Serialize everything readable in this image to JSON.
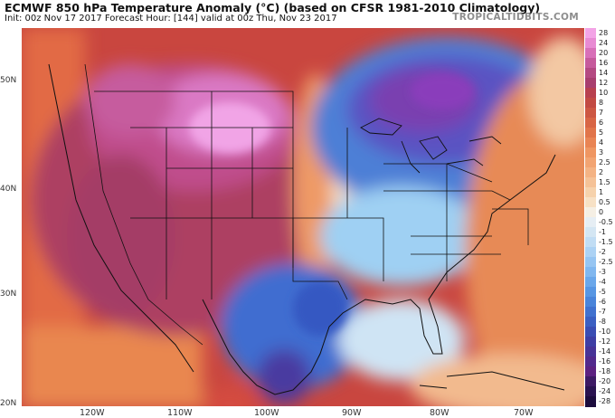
{
  "header": {
    "title": "ECMWF 850 hPa Temperature Anomaly (°C) (based on CFSR 1981-2010 Climatology)",
    "subtitle": "Init: 00z Nov 17 2017   Forecast Hour: [144]   valid at 00z Thu, Nov 23 2017",
    "brand": "TROPICALTIDBITS.COM"
  },
  "axes": {
    "lat_labels": [
      "50N",
      "40N",
      "30N",
      "20N"
    ],
    "lon_labels": [
      "120W",
      "110W",
      "100W",
      "90W",
      "80W",
      "70W"
    ]
  },
  "colorbar": {
    "labels": [
      "28",
      "24",
      "20",
      "16",
      "14",
      "12",
      "10",
      "8",
      "7",
      "6",
      "5",
      "4",
      "3",
      "2.5",
      "2",
      "1.5",
      "1",
      "0.5",
      "0",
      "-0.5",
      "-1",
      "-1.5",
      "-2",
      "-2.5",
      "-3",
      "-4",
      "-5",
      "-6",
      "-7",
      "-8",
      "-10",
      "-12",
      "-14",
      "-16",
      "-18",
      "-20",
      "-24",
      "-28"
    ],
    "colors": [
      "#f3a3e6",
      "#e88ad3",
      "#d86fb8",
      "#c65a9c",
      "#b44982",
      "#a83e6e",
      "#b8404f",
      "#c24a43",
      "#cd5743",
      "#d86545",
      "#e1744a",
      "#e98454",
      "#ef9662",
      "#f2a472",
      "#f4b384",
      "#f5c297",
      "#f6d2ac",
      "#f7e1c5",
      "#f5efe4",
      "#e6eef4",
      "#d4e6f3",
      "#c1ddf4",
      "#acd2f4",
      "#96c5f2",
      "#80b7ef",
      "#6aa7ea",
      "#5796e3",
      "#4a84da",
      "#4171cf",
      "#3b5fc2",
      "#3a4db3",
      "#3e3ea4",
      "#473397",
      "#52298c",
      "#5c2181",
      "#3d1a64",
      "#2a1350",
      "#1c0c3d"
    ]
  }
}
